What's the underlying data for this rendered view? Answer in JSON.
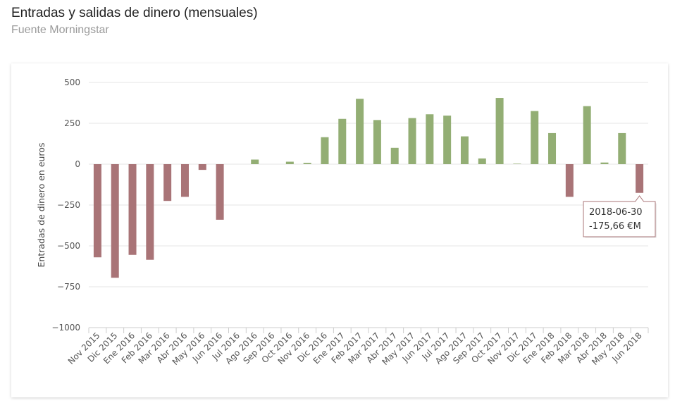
{
  "header": {
    "title": "Entradas y salidas de dinero (mensuales)",
    "subtitle": "Fuente Morningstar"
  },
  "colors": {
    "positive": "#93ae74",
    "negative": "#a97477",
    "grid": "#e6e6e6"
  },
  "chart_data": {
    "type": "bar",
    "title": "Entradas y salidas de dinero (mensuales)",
    "subtitle": "Fuente Morningstar",
    "xlabel": "",
    "ylabel": "Entradas de dinero en euros",
    "ylim": [
      -1000,
      500
    ],
    "yticks": [
      500,
      250,
      0,
      -250,
      -500,
      -750,
      -1000
    ],
    "ytick_labels": [
      "500",
      "250",
      "0",
      "−250",
      "−500",
      "−750",
      "−1000"
    ],
    "grid": true,
    "categories": [
      "Nov 2015",
      "Dic 2015",
      "Ene 2016",
      "Feb 2016",
      "Mar 2016",
      "Abr 2016",
      "May 2016",
      "Jun 2016",
      "Jul 2016",
      "Ago 2016",
      "Sep 2016",
      "Oct 2016",
      "Nov 2016",
      "Dic 2016",
      "Ene 2017",
      "Feb 2017",
      "Mar 2017",
      "Abr 2017",
      "May 2017",
      "Jun 2017",
      "Jul 2017",
      "Ago 2017",
      "Sep 2017",
      "Oct 2017",
      "Nov 2017",
      "Dic 2017",
      "Ene 2018",
      "Feb 2018",
      "Mar 2018",
      "Abr 2018",
      "May 2018",
      "Jun 2018"
    ],
    "values": [
      -570,
      -695,
      -555,
      -585,
      -225,
      -200,
      -35,
      -340,
      0,
      28,
      0,
      15,
      8,
      165,
      277,
      400,
      270,
      100,
      282,
      305,
      297,
      170,
      35,
      405,
      3,
      325,
      190,
      -200,
      355,
      10,
      190,
      -175.66
    ],
    "tooltip": {
      "category_index": 31,
      "date": "2018-06-30",
      "value": "-175,66 €M"
    }
  }
}
